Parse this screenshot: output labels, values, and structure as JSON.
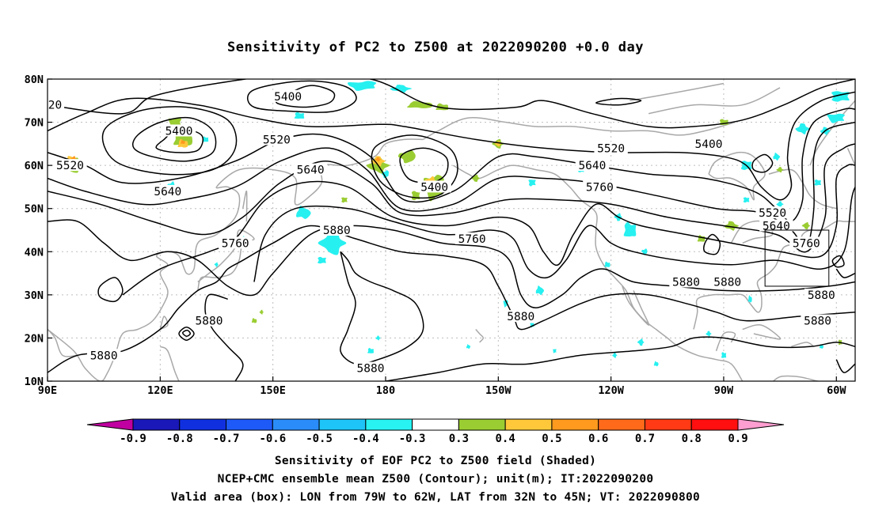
{
  "title": "Sensitivity of PC2 to Z500 at 2022090200 +0.0 day",
  "captions": {
    "line1": "Sensitivity of EOF PC2 to Z500 field (Shaded)",
    "line2": "NCEP+CMC ensemble mean Z500 (Contour); unit(m); IT:2022090200",
    "line3": "Valid area (box): LON from 79W to 62W, LAT from 32N to 45N; VT: 2022090800"
  },
  "colors": {
    "contour": "#000000",
    "coast": "#a8a8a8",
    "grid": "#bdbdbd",
    "negative_shade": "#27f0f0",
    "positive_low": "#9acd32",
    "positive_mid": "#ffc83a",
    "positive_high": "#ff9a1e"
  },
  "chart_data": {
    "type": "contour map",
    "projection": "cylindrical",
    "lon_range": [
      90,
      305
    ],
    "lat_range": [
      10,
      80
    ],
    "x_ticks": [
      "90E",
      "120E",
      "150E",
      "180",
      "150W",
      "120W",
      "90W",
      "60W"
    ],
    "y_ticks": [
      "10N",
      "20N",
      "30N",
      "40N",
      "50N",
      "60N",
      "70N",
      "80N"
    ],
    "grid": true,
    "contour_labels": [
      {
        "text": "5400",
        "lon": 154,
        "lat": 76
      },
      {
        "text": "5400",
        "lon": 125,
        "lat": 68
      },
      {
        "text": "5400",
        "lon": 193,
        "lat": 55
      },
      {
        "text": "5400",
        "lon": 266,
        "lat": 65
      },
      {
        "text": "5520",
        "lon": 151,
        "lat": 66
      },
      {
        "text": "5520",
        "lon": 96,
        "lat": 60
      },
      {
        "text": "5520",
        "lon": 240,
        "lat": 64
      },
      {
        "text": "5520",
        "lon": 283,
        "lat": 49
      },
      {
        "text": "20",
        "lon": 92,
        "lat": 74
      },
      {
        "text": "5640",
        "lon": 160,
        "lat": 59
      },
      {
        "text": "5640",
        "lon": 122,
        "lat": 54
      },
      {
        "text": "5640",
        "lon": 235,
        "lat": 60
      },
      {
        "text": "5640",
        "lon": 284,
        "lat": 46
      },
      {
        "text": "5760",
        "lon": 237,
        "lat": 55
      },
      {
        "text": "5760",
        "lon": 203,
        "lat": 43
      },
      {
        "text": "5760",
        "lon": 140,
        "lat": 42
      },
      {
        "text": "5760",
        "lon": 292,
        "lat": 42
      },
      {
        "text": "5880",
        "lon": 167,
        "lat": 45
      },
      {
        "text": "5880",
        "lon": 260,
        "lat": 33
      },
      {
        "text": "5880",
        "lon": 271,
        "lat": 33
      },
      {
        "text": "5880",
        "lon": 296,
        "lat": 30
      },
      {
        "text": "5880",
        "lon": 216,
        "lat": 25
      },
      {
        "text": "5880",
        "lon": 133,
        "lat": 24
      },
      {
        "text": "5880",
        "lon": 105,
        "lat": 16
      },
      {
        "text": "5880",
        "lon": 176,
        "lat": 13
      },
      {
        "text": "5880",
        "lon": 295,
        "lat": 24
      }
    ],
    "valid_box": {
      "lon": [
        281,
        298
      ],
      "lat": [
        32,
        45
      ]
    },
    "colorbar": {
      "tick_labels": [
        "-0.9",
        "-0.8",
        "-0.7",
        "-0.6",
        "-0.5",
        "-0.4",
        "-0.3",
        "0.3",
        "0.4",
        "0.5",
        "0.6",
        "0.7",
        "0.8",
        "0.9"
      ],
      "colors": [
        "#c000a0",
        "#1a18b8",
        "#1030e0",
        "#1e5af8",
        "#2a8cf8",
        "#1ec4f8",
        "#28f2f2",
        "#ffffff",
        "#9acd32",
        "#ffc83a",
        "#ff9a1e",
        "#ff6a1a",
        "#ff3a14",
        "#ff0f0f",
        "#ff9ed0"
      ]
    }
  }
}
